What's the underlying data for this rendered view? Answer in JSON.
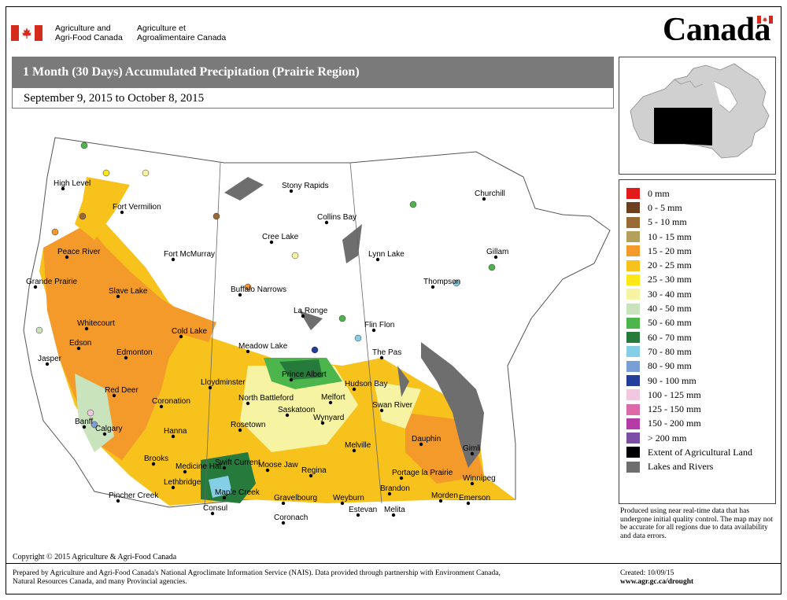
{
  "header": {
    "dept_en": "Agriculture and\nAgri-Food Canada",
    "dept_fr": "Agriculture et\nAgroalimentaire Canada",
    "wordmark": "Canada"
  },
  "map": {
    "title": "1 Month (30 Days) Accumulated Precipitation (Prairie Region)",
    "date_range": "September 9, 2015 to October 8, 2015",
    "cities": [
      "Stony Rapids",
      "High Level",
      "Fort Vermilion",
      "Collins Bay",
      "Churchill",
      "Cree Lake",
      "Peace River",
      "Fort McMurray",
      "Lynn Lake",
      "Gillam",
      "Grande Prairie",
      "Slave Lake",
      "Buffalo Narrows",
      "Thompson",
      "La Ronge",
      "Whitecourt",
      "Cold Lake",
      "Flin Flon",
      "Edson",
      "Meadow Lake",
      "Edmonton",
      "The Pas",
      "Jasper",
      "Lloydminster",
      "Prince Albert",
      "Hudson Bay",
      "Red Deer",
      "North Battleford",
      "Melfort",
      "Swan River",
      "Coronation",
      "Saskatoon",
      "Banff",
      "Wynyard",
      "Calgary",
      "Hanna",
      "Rosetown",
      "Dauphin",
      "Melville",
      "Brooks",
      "Gimli",
      "Moose Jaw",
      "Medicine Hat",
      "Regina",
      "Swift Current",
      "Portage la Prairie",
      "Winnipeg",
      "Lethbridge",
      "Brandon",
      "Maple Creek",
      "Pincher Creek",
      "Gravelbourg",
      "Weyburn",
      "Morden",
      "Emerson",
      "Consul",
      "Estevan",
      "Melita",
      "Coronach"
    ]
  },
  "legend": {
    "items": [
      {
        "label": "0 mm",
        "color": "#e31a1c"
      },
      {
        "label": "0 - 5 mm",
        "color": "#6b3f1f"
      },
      {
        "label": "5 - 10 mm",
        "color": "#9a6a35"
      },
      {
        "label": "10 - 15 mm",
        "color": "#b3a05a"
      },
      {
        "label": "15 - 20 mm",
        "color": "#f39a2b"
      },
      {
        "label": "20 - 25 mm",
        "color": "#f7c21c"
      },
      {
        "label": "25 - 30 mm",
        "color": "#fbe816"
      },
      {
        "label": "30 - 40 mm",
        "color": "#f6f3a2"
      },
      {
        "label": "40 - 50 mm",
        "color": "#c9e3bc"
      },
      {
        "label": "50 - 60 mm",
        "color": "#4cb54c"
      },
      {
        "label": "60 - 70 mm",
        "color": "#267a3c"
      },
      {
        "label": "70 - 80 mm",
        "color": "#84cfe6"
      },
      {
        "label": "80 - 90 mm",
        "color": "#7a9fd6"
      },
      {
        "label": "90 - 100 mm",
        "color": "#233e9a"
      },
      {
        "label": "100 - 125 mm",
        "color": "#f2c8e0"
      },
      {
        "label": "125 - 150 mm",
        "color": "#dd6aa8"
      },
      {
        "label": "150 - 200 mm",
        "color": "#b53ca6"
      },
      {
        "label": "> 200 mm",
        "color": "#7b4fa6"
      },
      {
        "label": "Extent of Agricultural Land",
        "color": "#000000"
      },
      {
        "label": "Lakes and Rivers",
        "color": "#6e6e6e"
      }
    ]
  },
  "footer": {
    "note": "Produced using near real-time data that has undergone initial quality control.  The map may not be accurate for all regions due to data availability and data errors.",
    "copyright": "Copyright © 2015 Agriculture & Agri-Food Canada",
    "prepared": "Prepared by Agriculture and Agri-Food Canada's National Agroclimate Information Service (NAIS).   Data provided through partnership with Environment Canada, Natural Resources Canada, and many Provincial agencies.",
    "created": "Created: 10/09/15",
    "url": "www.agr.gc.ca/drought"
  }
}
